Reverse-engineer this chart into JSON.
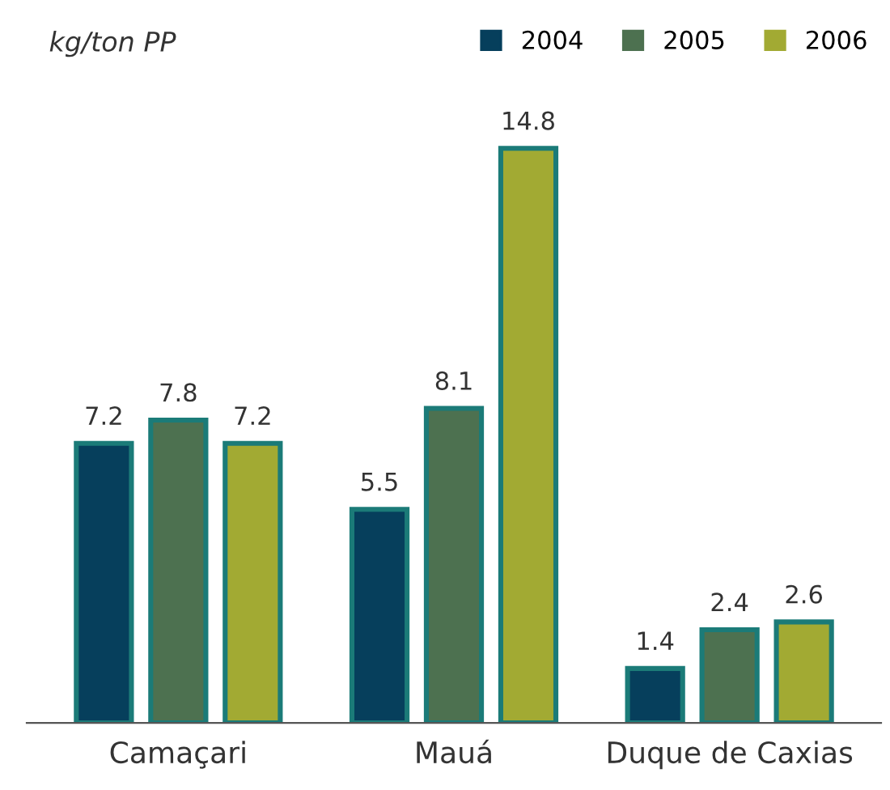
{
  "chart_data": {
    "type": "bar",
    "ylabel": "kg/ton PP",
    "categories": [
      "Camaçari",
      "Mauá",
      "Duque de Caxias"
    ],
    "series": [
      {
        "name": "2004",
        "color": "#063f5c",
        "values": [
          7.2,
          5.5,
          1.4
        ]
      },
      {
        "name": "2005",
        "color": "#4d7150",
        "values": [
          7.8,
          8.1,
          2.4
        ]
      },
      {
        "name": "2006",
        "color": "#a2aa33",
        "values": [
          7.2,
          14.8,
          2.6
        ]
      }
    ],
    "data_labels": true,
    "legend": "top right",
    "grid": false
  }
}
